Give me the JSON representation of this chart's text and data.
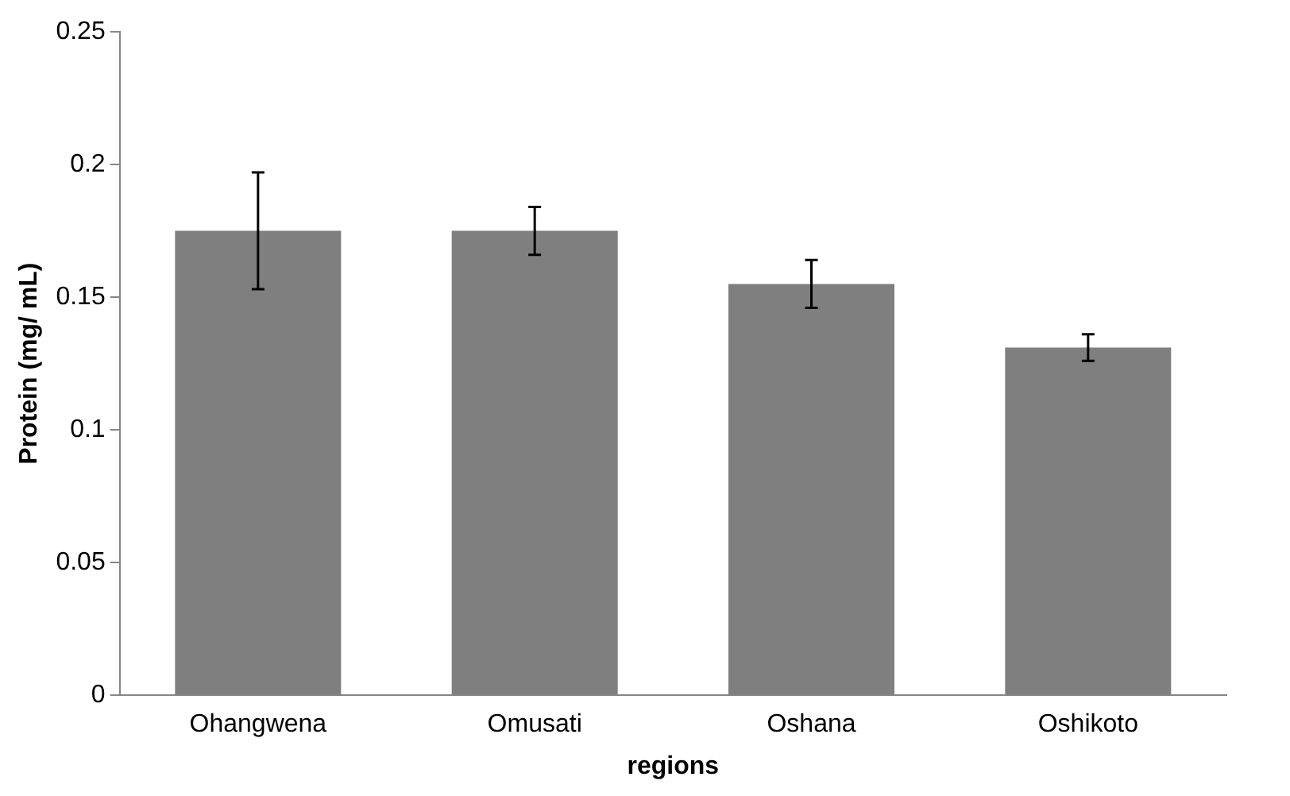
{
  "chart_data": {
    "type": "bar",
    "xlabel": "regions",
    "ylabel": "Protein (mg/ mL)",
    "categories": [
      "Ohangwena",
      "Omusati",
      "Oshana",
      "Oshikoto"
    ],
    "values": [
      0.175,
      0.175,
      0.155,
      0.131
    ],
    "errors": [
      0.022,
      0.009,
      0.009,
      0.005
    ],
    "color": "#7f7f7f",
    "ylim": [
      0,
      0.25
    ],
    "yticks": [
      0,
      0.05,
      0.1,
      0.15,
      0.2,
      0.25
    ],
    "grid": false,
    "legend": false
  }
}
